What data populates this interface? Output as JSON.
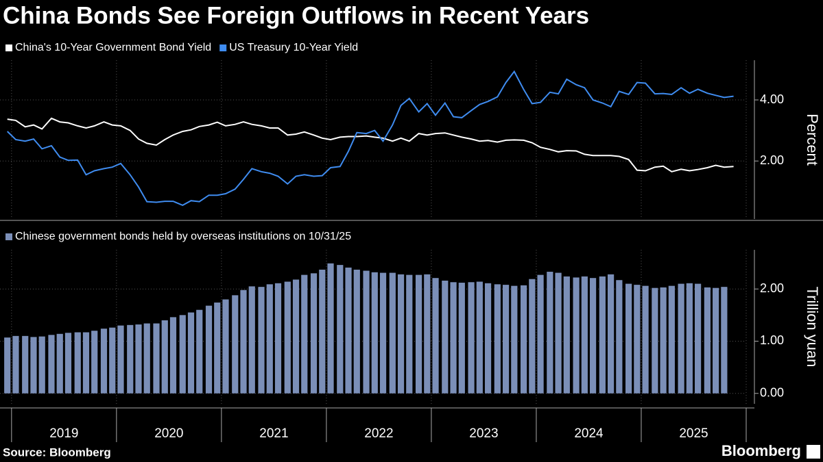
{
  "title": "China Bonds See Foreign Outflows in Recent Years",
  "source": "Source: Bloomberg",
  "brand": "Bloomberg",
  "chart_data": [
    {
      "type": "line",
      "ylabel": "Percent",
      "ylim": [
        0.1,
        5.3
      ],
      "yticks": [
        {
          "value": 2,
          "label": "2.00"
        },
        {
          "value": 4,
          "label": "4.00"
        }
      ],
      "grid": true,
      "x": [
        2018.96,
        2019.04,
        2019.13,
        2019.21,
        2019.29,
        2019.38,
        2019.46,
        2019.54,
        2019.63,
        2019.71,
        2019.79,
        2019.88,
        2019.96,
        2020.04,
        2020.13,
        2020.21,
        2020.29,
        2020.38,
        2020.46,
        2020.54,
        2020.63,
        2020.71,
        2020.79,
        2020.88,
        2020.96,
        2021.04,
        2021.13,
        2021.21,
        2021.29,
        2021.38,
        2021.46,
        2021.54,
        2021.63,
        2021.71,
        2021.79,
        2021.88,
        2021.96,
        2022.04,
        2022.13,
        2022.21,
        2022.29,
        2022.38,
        2022.46,
        2022.54,
        2022.63,
        2022.71,
        2022.79,
        2022.88,
        2022.96,
        2023.04,
        2023.13,
        2023.21,
        2023.29,
        2023.38,
        2023.46,
        2023.54,
        2023.63,
        2023.71,
        2023.79,
        2023.88,
        2023.96,
        2024.04,
        2024.13,
        2024.21,
        2024.29,
        2024.38,
        2024.46,
        2024.54,
        2024.63,
        2024.71,
        2024.79,
        2024.88,
        2024.96,
        2025.04,
        2025.13,
        2025.21,
        2025.29,
        2025.38,
        2025.46,
        2025.54,
        2025.63,
        2025.71,
        2025.79,
        2025.88
      ],
      "series": [
        {
          "name": "China's 10-Year Government Bond Yield",
          "color": "#ffffff",
          "values": [
            3.37,
            3.33,
            3.12,
            3.18,
            3.05,
            3.4,
            3.28,
            3.25,
            3.15,
            3.08,
            3.15,
            3.28,
            3.18,
            3.15,
            3.0,
            2.72,
            2.58,
            2.52,
            2.7,
            2.85,
            2.97,
            3.02,
            3.13,
            3.18,
            3.27,
            3.15,
            3.2,
            3.28,
            3.2,
            3.15,
            3.08,
            3.08,
            2.85,
            2.88,
            2.95,
            2.85,
            2.75,
            2.7,
            2.78,
            2.8,
            2.8,
            2.82,
            2.78,
            2.75,
            2.65,
            2.75,
            2.65,
            2.9,
            2.85,
            2.9,
            2.92,
            2.85,
            2.78,
            2.72,
            2.65,
            2.67,
            2.62,
            2.68,
            2.69,
            2.68,
            2.6,
            2.45,
            2.38,
            2.3,
            2.34,
            2.33,
            2.22,
            2.18,
            2.18,
            2.18,
            2.15,
            2.05,
            1.7,
            1.68,
            1.8,
            1.83,
            1.65,
            1.73,
            1.68,
            1.72,
            1.78,
            1.86,
            1.8,
            1.82
          ]
        },
        {
          "name": "US Treasury 10-Year Yield",
          "color": "#3f8cf0",
          "values": [
            2.97,
            2.7,
            2.65,
            2.72,
            2.4,
            2.5,
            2.13,
            2.02,
            2.03,
            1.55,
            1.68,
            1.75,
            1.8,
            1.92,
            1.55,
            1.15,
            0.67,
            0.65,
            0.68,
            0.68,
            0.55,
            0.7,
            0.67,
            0.88,
            0.88,
            0.93,
            1.08,
            1.4,
            1.75,
            1.65,
            1.6,
            1.5,
            1.25,
            1.5,
            1.55,
            1.5,
            1.52,
            1.78,
            1.82,
            2.32,
            2.93,
            2.9,
            3.0,
            2.65,
            3.18,
            3.82,
            4.05,
            3.61,
            3.88,
            3.5,
            3.9,
            3.45,
            3.42,
            3.65,
            3.85,
            3.95,
            4.1,
            4.57,
            4.93,
            4.34,
            3.88,
            3.92,
            4.25,
            4.2,
            4.68,
            4.5,
            4.4,
            4.0,
            3.9,
            3.78,
            4.28,
            4.18,
            4.57,
            4.55,
            4.2,
            4.21,
            4.18,
            4.4,
            4.22,
            4.35,
            4.22,
            4.15,
            4.08,
            4.12
          ]
        }
      ]
    },
    {
      "type": "bar",
      "ylabel": "Trillion yuan",
      "ylim": [
        -0.2,
        2.75
      ],
      "yticks": [
        {
          "value": 0,
          "label": "0.00"
        },
        {
          "value": 1,
          "label": "1.00"
        },
        {
          "value": 2,
          "label": "2.00"
        }
      ],
      "grid": true,
      "xlim": [
        2018.89,
        2026
      ],
      "xticks": [
        {
          "value": 2019.5,
          "label": "2019"
        },
        {
          "value": 2020.5,
          "label": "2020"
        },
        {
          "value": 2021.5,
          "label": "2021"
        },
        {
          "value": 2022.5,
          "label": "2022"
        },
        {
          "value": 2023.5,
          "label": "2023"
        },
        {
          "value": 2024.5,
          "label": "2024"
        },
        {
          "value": 2025.5,
          "label": "2025"
        }
      ],
      "x": [
        2018.96,
        2019.04,
        2019.13,
        2019.21,
        2019.29,
        2019.38,
        2019.46,
        2019.54,
        2019.63,
        2019.71,
        2019.79,
        2019.88,
        2019.96,
        2020.04,
        2020.13,
        2020.21,
        2020.29,
        2020.38,
        2020.46,
        2020.54,
        2020.63,
        2020.71,
        2020.79,
        2020.88,
        2020.96,
        2021.04,
        2021.13,
        2021.21,
        2021.29,
        2021.38,
        2021.46,
        2021.54,
        2021.63,
        2021.71,
        2021.79,
        2021.88,
        2021.96,
        2022.04,
        2022.13,
        2022.21,
        2022.29,
        2022.38,
        2022.46,
        2022.54,
        2022.63,
        2022.71,
        2022.79,
        2022.88,
        2022.96,
        2023.04,
        2023.13,
        2023.21,
        2023.29,
        2023.38,
        2023.46,
        2023.54,
        2023.63,
        2023.71,
        2023.79,
        2023.88,
        2023.96,
        2024.04,
        2024.13,
        2024.21,
        2024.29,
        2024.38,
        2024.46,
        2024.54,
        2024.63,
        2024.71,
        2024.79,
        2024.88,
        2024.96,
        2025.04,
        2025.13,
        2025.21,
        2025.29,
        2025.38,
        2025.46,
        2025.54,
        2025.63,
        2025.71,
        2025.79
      ],
      "series": [
        {
          "name": "Chinese government bonds held by overseas institutions on 10/31/25",
          "color": "#7b8fb8",
          "values": [
            1.07,
            1.1,
            1.1,
            1.08,
            1.09,
            1.12,
            1.14,
            1.16,
            1.17,
            1.17,
            1.2,
            1.24,
            1.26,
            1.3,
            1.31,
            1.32,
            1.34,
            1.34,
            1.4,
            1.46,
            1.5,
            1.55,
            1.6,
            1.68,
            1.74,
            1.8,
            1.88,
            1.98,
            2.05,
            2.04,
            2.09,
            2.11,
            2.14,
            2.18,
            2.27,
            2.3,
            2.37,
            2.49,
            2.46,
            2.41,
            2.37,
            2.35,
            2.32,
            2.31,
            2.31,
            2.28,
            2.27,
            2.27,
            2.28,
            2.21,
            2.16,
            2.13,
            2.12,
            2.13,
            2.14,
            2.11,
            2.09,
            2.08,
            2.06,
            2.07,
            2.19,
            2.27,
            2.33,
            2.31,
            2.24,
            2.22,
            2.24,
            2.21,
            2.24,
            2.28,
            2.17,
            2.1,
            2.08,
            2.06,
            2.02,
            2.03,
            2.06,
            2.1,
            2.11,
            2.1,
            2.03,
            2.02,
            2.04
          ]
        }
      ]
    }
  ]
}
